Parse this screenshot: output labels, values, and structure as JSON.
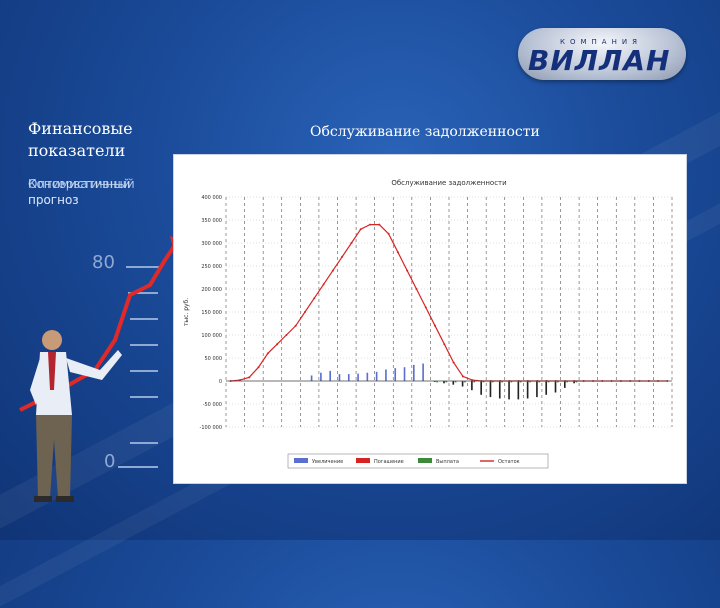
{
  "logo": {
    "sub": "КОМПАНИЯ",
    "main": "ВИЛЛАН"
  },
  "left_panel": {
    "title": "Финансовые показатели",
    "subtitle_a": "Консервативный прогноз",
    "subtitle_b": "Оптимистичный прогноз",
    "scale_top": "80",
    "scale_bottom": "0"
  },
  "slide_title": "Обслуживание задолженности",
  "colors": {
    "balance": "#d62424",
    "income": "#5a6fd0",
    "repayment": "#222222",
    "accent": "#d62424"
  },
  "chart_data": {
    "type": "bar",
    "title": "Обслуживание задолженности",
    "ylabel": "тыс. руб.",
    "ylim": [
      -100000,
      400000
    ],
    "yticks": [
      -100000,
      -50000,
      0,
      50000,
      100000,
      150000,
      200000,
      250000,
      300000,
      350000,
      400000
    ],
    "ytick_labels": [
      "-100 000",
      "-50 000",
      "0",
      "50 000",
      "100 000",
      "150 000",
      "200 000",
      "250 000",
      "300 000",
      "350 000",
      "400 000"
    ],
    "grid": true,
    "legend": [
      "Увеличение",
      "Погашение",
      "Выплата",
      "Остаток"
    ],
    "legend_position": "bottom",
    "x_count": 48,
    "series": [
      {
        "name": "Увеличение",
        "type": "bar",
        "values": [
          0,
          0,
          0,
          0,
          0,
          0,
          0,
          0,
          0,
          12000,
          18000,
          22000,
          15000,
          15000,
          16000,
          18000,
          20000,
          25000,
          28000,
          30000,
          35000,
          38000,
          0,
          0,
          0,
          0,
          0,
          0,
          0,
          0,
          0,
          0,
          0,
          0,
          0,
          0,
          0,
          0,
          0,
          0,
          0,
          0,
          0,
          0,
          0,
          0,
          0,
          0
        ]
      },
      {
        "name": "Погашение",
        "type": "bar",
        "values": [
          0,
          0,
          0,
          0,
          0,
          0,
          0,
          0,
          0,
          0,
          0,
          0,
          0,
          0,
          0,
          0,
          0,
          0,
          0,
          0,
          0,
          0,
          -2000,
          -5000,
          -8000,
          -12000,
          -20000,
          -30000,
          -35000,
          -38000,
          -40000,
          -40000,
          -38000,
          -35000,
          -30000,
          -25000,
          -15000,
          -5000,
          0,
          0,
          0,
          0,
          0,
          0,
          0,
          0,
          0,
          0
        ]
      },
      {
        "name": "Выплата",
        "type": "bar",
        "values": [
          0,
          0,
          0,
          0,
          0,
          0,
          0,
          0,
          0,
          0,
          0,
          0,
          0,
          0,
          0,
          0,
          0,
          0,
          0,
          0,
          0,
          0,
          -3000,
          -3000,
          -3000,
          -3000,
          -3000,
          -3000,
          -3000,
          -3000,
          -3000,
          -3000,
          -3000,
          -3000,
          -3000,
          -3000,
          -3000,
          -3000,
          0,
          0,
          0,
          0,
          0,
          0,
          0,
          0,
          0,
          0
        ]
      },
      {
        "name": "Остаток",
        "type": "line",
        "values": [
          0,
          2000,
          8000,
          30000,
          60000,
          80000,
          100000,
          120000,
          150000,
          180000,
          210000,
          240000,
          270000,
          300000,
          330000,
          340000,
          340000,
          320000,
          280000,
          240000,
          200000,
          160000,
          120000,
          80000,
          40000,
          10000,
          2000,
          0,
          0,
          0,
          0,
          0,
          0,
          0,
          0,
          0,
          0,
          0,
          0,
          0,
          0,
          0,
          0,
          0,
          0,
          0,
          0,
          0
        ]
      }
    ]
  }
}
